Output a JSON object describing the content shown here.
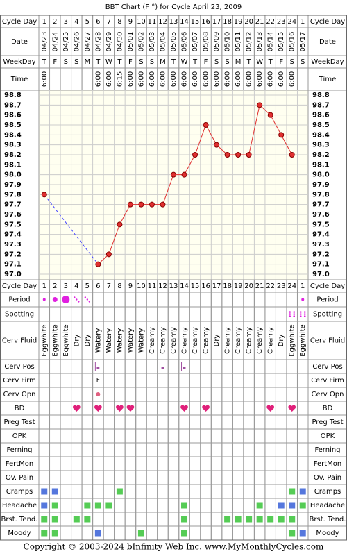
{
  "chart_data": {
    "type": "line",
    "title": "BBT Chart (F °) for Cycle April 23, 2009",
    "categories": [
      "04/23",
      "04/24",
      "04/25",
      "04/26",
      "04/27",
      "04/28",
      "04/29",
      "04/30",
      "05/01",
      "05/02",
      "05/03",
      "05/04",
      "05/05",
      "05/06",
      "05/07",
      "05/08",
      "05/09",
      "05/10",
      "05/11",
      "05/12",
      "05/13",
      "05/14",
      "05/15",
      "05/16",
      "05/17"
    ],
    "values": [
      97.8,
      null,
      null,
      null,
      null,
      97.1,
      97.2,
      97.5,
      97.7,
      97.7,
      97.7,
      97.7,
      98.0,
      98.0,
      98.2,
      98.5,
      98.3,
      98.2,
      98.2,
      98.2,
      98.7,
      98.6,
      98.4,
      98.2,
      null
    ],
    "color": "#e03030",
    "ylim": [
      97.0,
      98.8
    ],
    "yticks": [
      98.8,
      98.7,
      98.6,
      98.5,
      98.4,
      98.3,
      98.2,
      98.1,
      {
        "value": 98,
        "label": "98.0"
      },
      97.9,
      97.8,
      97.7,
      97.6,
      97.5,
      97.4,
      97.3,
      97.2,
      97.1,
      {
        "value": 97,
        "label": "97.0"
      }
    ],
    "grid": true
  },
  "labels": {
    "cycle_day": "Cycle Day",
    "date": "Date",
    "weekday": "WeekDay",
    "time": "Time"
  },
  "cycle_days": [
    1,
    2,
    3,
    4,
    5,
    6,
    7,
    8,
    9,
    10,
    11,
    12,
    13,
    14,
    15,
    16,
    17,
    18,
    19,
    20,
    21,
    22,
    23,
    24,
    1
  ],
  "weekdays": [
    "T",
    "F",
    "S",
    "S",
    "M",
    "T",
    "W",
    "T",
    "F",
    "S",
    "S",
    "M",
    "T",
    "W",
    "T",
    "F",
    "S",
    "S",
    "M",
    "T",
    "W",
    "T",
    "F",
    "S",
    "S"
  ],
  "times": [
    "6:00",
    null,
    null,
    null,
    null,
    "6:00",
    "6:00",
    "6:15",
    "6:00",
    "6:00",
    "6:00",
    "6:00",
    "6:00",
    "6:00",
    "6:00",
    "6:00",
    "6:00",
    "6:00",
    "6:00",
    "6:00",
    "6:00",
    "6:00",
    "6:00",
    "6:00",
    null
  ],
  "bottom_rows": [
    "Period",
    "Spotting",
    "Cerv Fluid",
    "Cerv Pos",
    "Cerv Firm",
    "Cerv Opn",
    "BD",
    "Preg Test",
    "OPK",
    "Ferning",
    "FertMon",
    "Ov. Pain",
    "Cramps",
    "Headache",
    "Brst. Tend.",
    "Moody"
  ],
  "cerv_fluid": [
    "Eggwhite",
    "Eggwhite",
    "Eggwhite",
    "Dry",
    "Dry",
    "Watery",
    "Watery",
    "Watery",
    "Watery",
    "Watery",
    "Creamy",
    "Creamy",
    "Creamy",
    "Creamy",
    "Creamy",
    "Creamy",
    "Dry",
    "Creamy",
    "Creamy",
    "Creamy",
    "Creamy",
    "Creamy",
    "Dry",
    "Eggwhite",
    "Eggwhite"
  ],
  "cerv_firm": [
    null,
    null,
    null,
    null,
    null,
    "F",
    null,
    null,
    null,
    null,
    null,
    null,
    null,
    null,
    null,
    null,
    null,
    null,
    null,
    null,
    null,
    null,
    null,
    null,
    null
  ],
  "footer": "Copyright © 2003-2024 bInfinity Web Inc.     www.MyMonthlyCycles.com"
}
